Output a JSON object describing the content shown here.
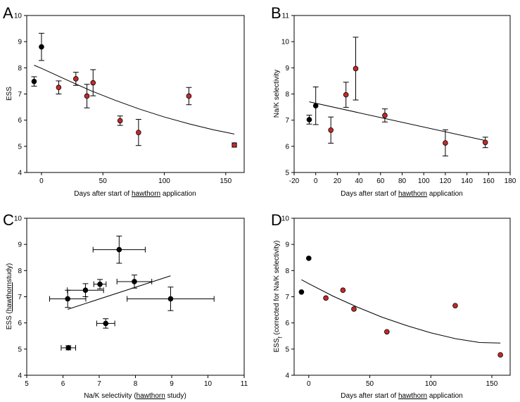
{
  "colors": {
    "black_point": "#000000",
    "red_point": "#c62828",
    "line": "#000000",
    "axis": "#000000"
  },
  "chart_data": [
    {
      "panel": "A",
      "type": "scatter",
      "xlabel": {
        "before": "Days after start of ",
        "underlined": "hawthorn",
        "after": " application"
      },
      "ylabel": {
        "before": "ESS",
        "underlined": "",
        "after": ""
      },
      "xlim": [
        -12,
        165
      ],
      "ylim": [
        4,
        10
      ],
      "xticks": [
        0,
        50,
        100,
        150
      ],
      "yticks": [
        4,
        5,
        6,
        7,
        8,
        9,
        10
      ],
      "points": [
        {
          "x": -6,
          "y": 7.48,
          "yerr": 0.18,
          "color": "black"
        },
        {
          "x": 0,
          "y": 8.8,
          "yerr": 0.52,
          "color": "black"
        },
        {
          "x": 14,
          "y": 7.25,
          "yerr": 0.25,
          "color": "red"
        },
        {
          "x": 28,
          "y": 7.58,
          "yerr": 0.25,
          "color": "red"
        },
        {
          "x": 37,
          "y": 6.92,
          "yerr": 0.45,
          "color": "red"
        },
        {
          "x": 42,
          "y": 7.43,
          "yerr": 0.5,
          "color": "red"
        },
        {
          "x": 64,
          "y": 5.98,
          "yerr": 0.18,
          "color": "red"
        },
        {
          "x": 79,
          "y": 5.53,
          "yerr": 0.5,
          "color": "red"
        },
        {
          "x": 120,
          "y": 6.92,
          "yerr": 0.33,
          "color": "red"
        },
        {
          "x": 157,
          "y": 5.05,
          "yerr": 0.08,
          "color": "red"
        }
      ],
      "fit": {
        "x": [
          -6,
          0,
          20,
          40,
          60,
          80,
          100,
          120,
          140,
          157
        ],
        "y": [
          8.1,
          7.98,
          7.55,
          7.13,
          6.76,
          6.42,
          6.12,
          5.86,
          5.63,
          5.47
        ]
      }
    },
    {
      "panel": "B",
      "type": "scatter",
      "xlabel": {
        "before": "Days after start of ",
        "underlined": "hawthorn",
        "after": " application"
      },
      "ylabel": {
        "before": "Na/K selectivity",
        "underlined": "",
        "after": ""
      },
      "xlim": [
        -20,
        180
      ],
      "ylim": [
        5,
        11
      ],
      "xticks": [
        -20,
        0,
        20,
        40,
        60,
        80,
        100,
        120,
        140,
        160,
        180
      ],
      "yticks": [
        5,
        6,
        7,
        8,
        9,
        10,
        11
      ],
      "points": [
        {
          "x": -6,
          "y": 7.02,
          "yerr": 0.17,
          "color": "black"
        },
        {
          "x": 0,
          "y": 7.55,
          "yerr": 0.72,
          "color": "black"
        },
        {
          "x": 14,
          "y": 6.62,
          "yerr": 0.5,
          "color": "red"
        },
        {
          "x": 28,
          "y": 7.97,
          "yerr": 0.48,
          "color": "red"
        },
        {
          "x": 37,
          "y": 8.97,
          "yerr": 1.2,
          "color": "red"
        },
        {
          "x": 64,
          "y": 7.18,
          "yerr": 0.25,
          "color": "red"
        },
        {
          "x": 120,
          "y": 6.13,
          "yerr": 0.5,
          "color": "red"
        },
        {
          "x": 157,
          "y": 6.15,
          "yerr": 0.2,
          "color": "red"
        }
      ],
      "fit": {
        "x": [
          -6,
          157
        ],
        "y": [
          7.7,
          6.22
        ]
      }
    },
    {
      "panel": "C",
      "type": "scatter",
      "xlabel": {
        "before": "Na/K selectivity (",
        "underlined": "hawthorn",
        "after": " study)"
      },
      "ylabel": {
        "before": "ESS (",
        "underlined": "hawthorn",
        "after": "study)"
      },
      "xlim": [
        5,
        11
      ],
      "ylim": [
        4,
        10
      ],
      "xticks": [
        5,
        6,
        7,
        8,
        9,
        10,
        11
      ],
      "yticks": [
        4,
        5,
        6,
        7,
        8,
        9,
        10
      ],
      "points": [
        {
          "x": 7.02,
          "y": 7.48,
          "xerr": 0.17,
          "yerr": 0.18,
          "color": "black"
        },
        {
          "x": 7.55,
          "y": 8.8,
          "xerr": 0.72,
          "yerr": 0.52,
          "color": "black"
        },
        {
          "x": 6.62,
          "y": 7.25,
          "xerr": 0.5,
          "yerr": 0.25,
          "color": "black"
        },
        {
          "x": 7.97,
          "y": 7.58,
          "xerr": 0.48,
          "yerr": 0.25,
          "color": "black"
        },
        {
          "x": 8.97,
          "y": 6.92,
          "xerr": 1.2,
          "yerr": 0.45,
          "color": "black"
        },
        {
          "x": 7.18,
          "y": 5.98,
          "xerr": 0.25,
          "yerr": 0.18,
          "color": "black"
        },
        {
          "x": 6.13,
          "y": 6.92,
          "xerr": 0.5,
          "yerr": 0.33,
          "color": "black"
        },
        {
          "x": 6.15,
          "y": 5.05,
          "xerr": 0.2,
          "yerr": 0.08,
          "color": "black"
        }
      ],
      "fit": {
        "x": [
          6.13,
          8.97
        ],
        "y": [
          6.52,
          7.8
        ]
      }
    },
    {
      "panel": "D",
      "type": "scatter",
      "xlabel": {
        "before": "Days after start of ",
        "underlined": "hawthorn",
        "after": " application"
      },
      "ylabel": {
        "before": "ESS",
        "sub": "f",
        "after": " (corrected for Na/K selectivity)"
      },
      "xlim": [
        -12,
        165
      ],
      "ylim": [
        4,
        10
      ],
      "xticks": [
        0,
        50,
        100,
        150
      ],
      "yticks": [
        4,
        5,
        6,
        7,
        8,
        9,
        10
      ],
      "points": [
        {
          "x": -6,
          "y": 7.18,
          "color": "black"
        },
        {
          "x": 0,
          "y": 8.47,
          "color": "black"
        },
        {
          "x": 14,
          "y": 6.95,
          "color": "red"
        },
        {
          "x": 28,
          "y": 7.25,
          "color": "red"
        },
        {
          "x": 37,
          "y": 6.53,
          "color": "red"
        },
        {
          "x": 64,
          "y": 5.66,
          "color": "red"
        },
        {
          "x": 120,
          "y": 6.66,
          "color": "red"
        },
        {
          "x": 157,
          "y": 4.78,
          "color": "red"
        }
      ],
      "fit": {
        "x": [
          -6,
          0,
          20,
          40,
          60,
          80,
          100,
          120,
          140,
          157
        ],
        "y": [
          7.65,
          7.5,
          7.02,
          6.6,
          6.22,
          5.9,
          5.62,
          5.4,
          5.25,
          5.23
        ]
      }
    }
  ]
}
